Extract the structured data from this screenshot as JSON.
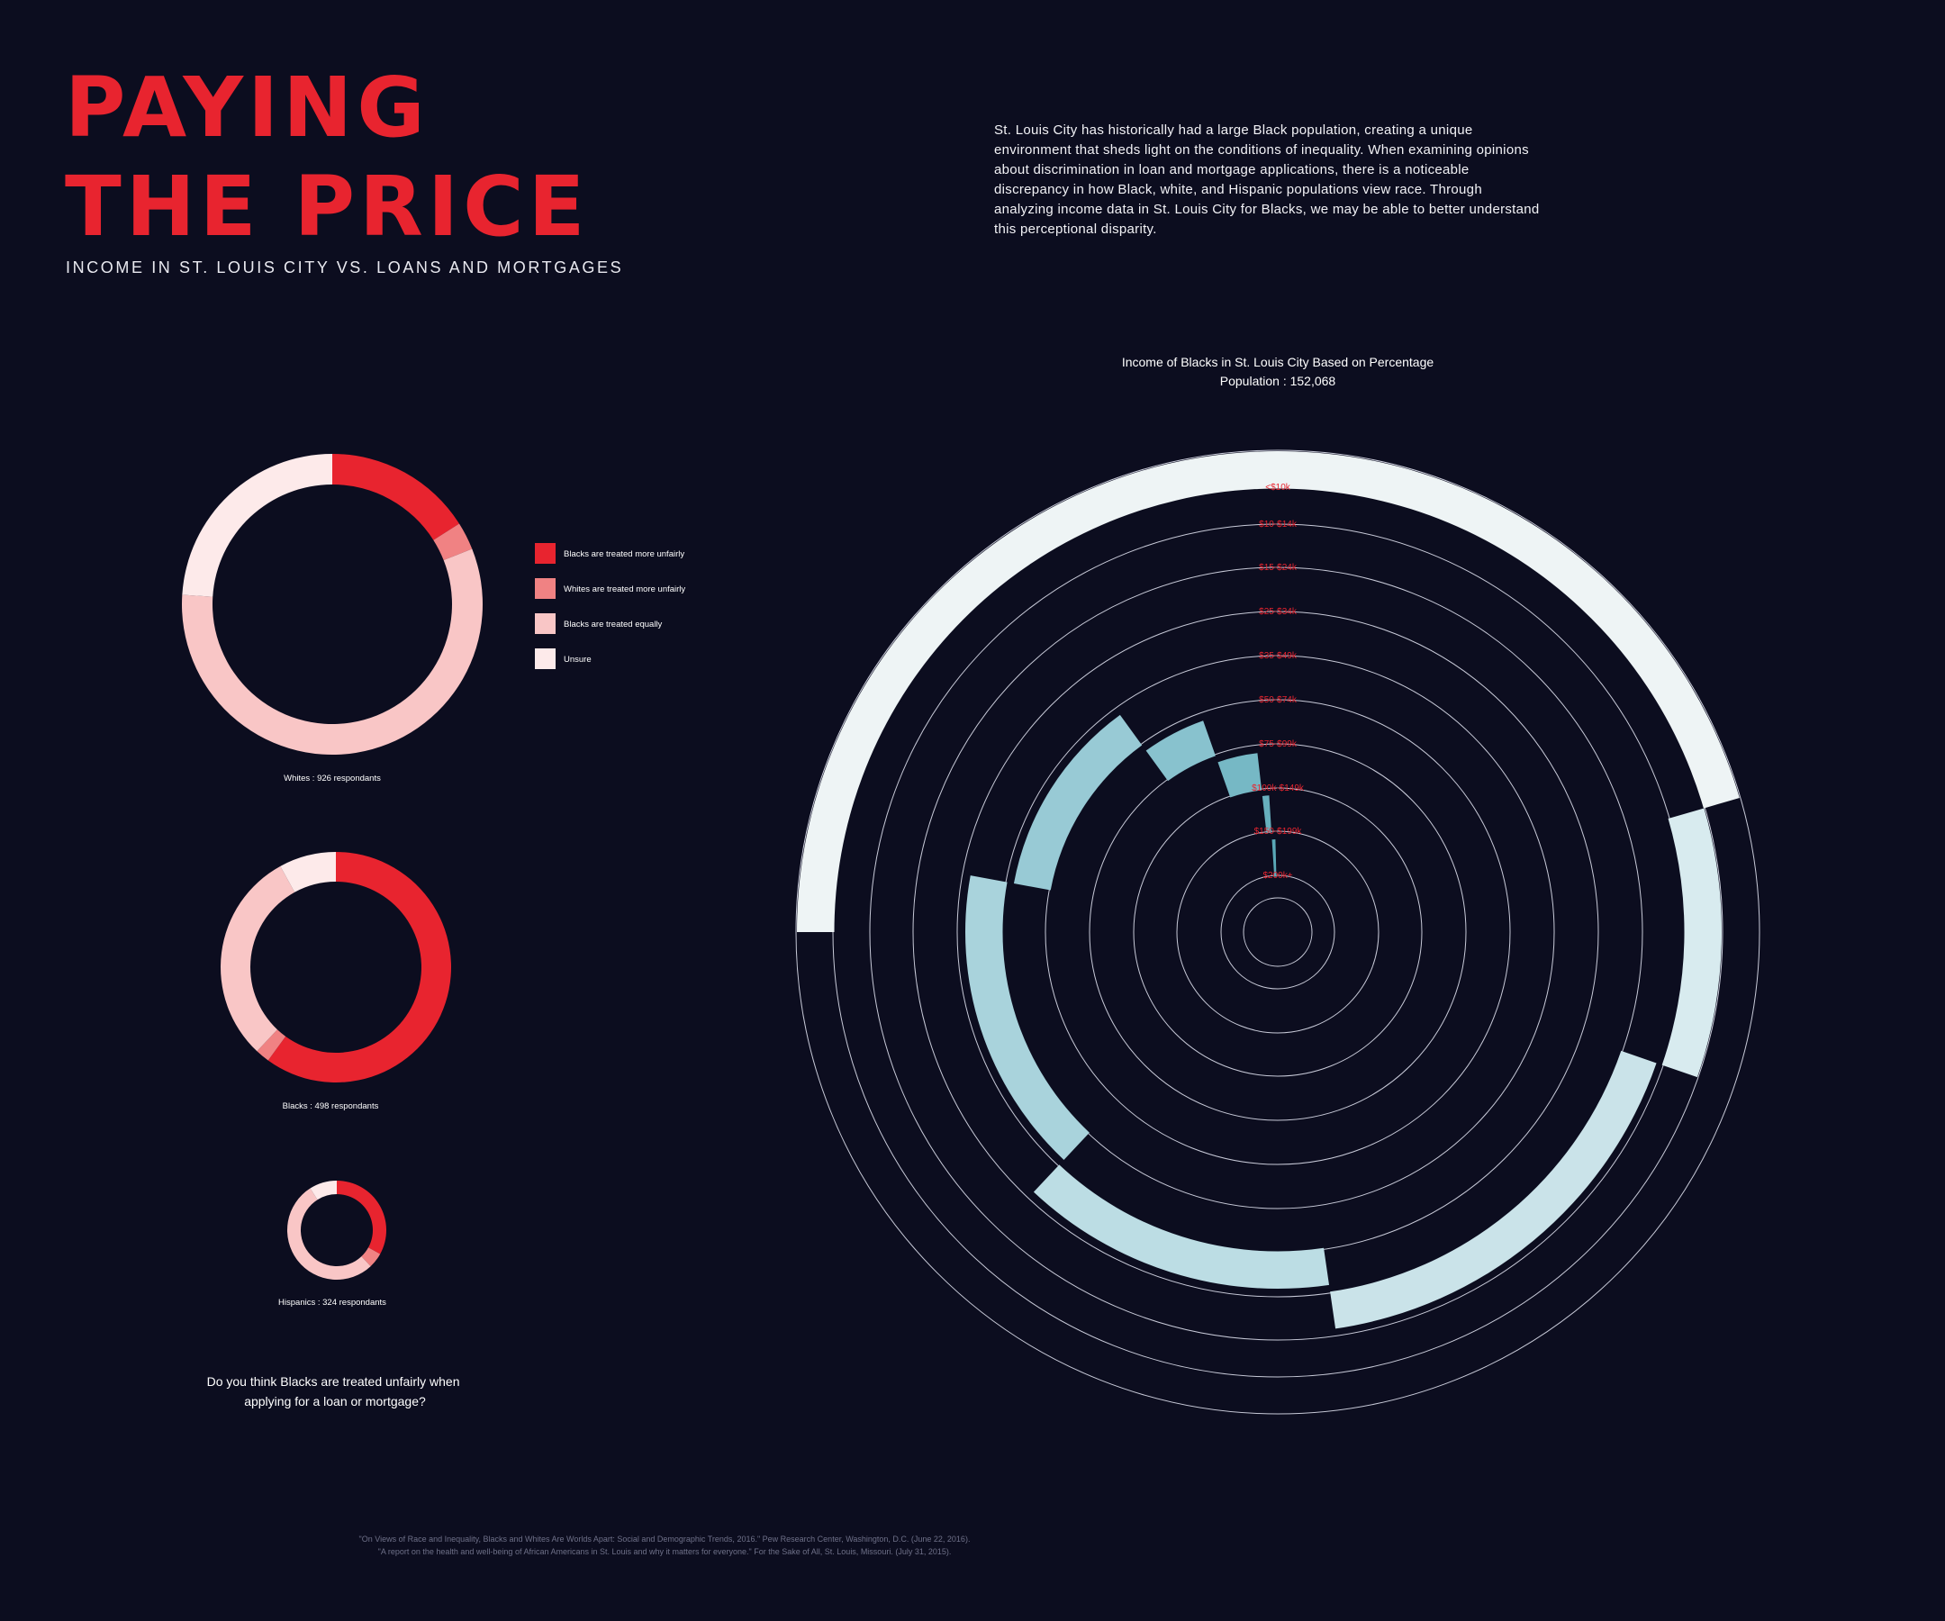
{
  "header": {
    "title_line1": "PAYING",
    "title_line2": "THE PRICE",
    "subtitle": "INCOME IN ST. LOUIS CITY VS. LOANS AND MORTGAGES"
  },
  "intro": "St. Louis City has historically had a large Black population, creating a unique environment that sheds light on the conditions of inequality. When examining opinions about discrimination in loan and mortgage applications, there is a noticeable discrepancy in how Black, white, and Hispanic populations view race. Through analyzing income data in St. Louis City for Blacks, we may be able to better understand this perceptional disparity.",
  "survey": {
    "question": "Do you think Blacks are treated unfairly when applying for a loan or mortgage?",
    "legend": [
      {
        "label": "Blacks are treated more unfairly",
        "color": "#e8242f"
      },
      {
        "label": "Whites are treated more unfairly",
        "color": "#f08283"
      },
      {
        "label": "Blacks are treated equally",
        "color": "#f9c6c6"
      },
      {
        "label": "Unsure",
        "color": "#fdeaea"
      }
    ]
  },
  "chart_data": [
    {
      "type": "pie",
      "variant": "donut",
      "title": "Whites : 926 respondants",
      "categories": [
        "Blacks are treated more unfairly",
        "Whites are treated more unfairly",
        "Blacks are treated equally",
        "Unsure"
      ],
      "values": [
        16,
        3,
        57,
        24
      ],
      "colors": [
        "#e8242f",
        "#f08283",
        "#f9c6c6",
        "#fdeaea"
      ]
    },
    {
      "type": "pie",
      "variant": "donut",
      "title": "Blacks : 498 respondants",
      "categories": [
        "Blacks are treated more unfairly",
        "Whites are treated more unfairly",
        "Blacks are treated equally",
        "Unsure"
      ],
      "values": [
        60,
        2,
        30,
        8
      ],
      "colors": [
        "#e8242f",
        "#f08283",
        "#f9c6c6",
        "#fdeaea"
      ]
    },
    {
      "type": "pie",
      "variant": "donut",
      "title": "Hispanics : 324 respondants",
      "categories": [
        "Blacks are treated more unfairly",
        "Whites are treated more unfairly",
        "Blacks are treated equally",
        "Unsure"
      ],
      "values": [
        33,
        5,
        53,
        9
      ],
      "colors": [
        "#e8242f",
        "#f08283",
        "#f9c6c6",
        "#fdeaea"
      ]
    },
    {
      "type": "bar",
      "variant": "radial",
      "title": "Income of Blacks in St. Louis City Based on Percentage",
      "subtitle": "Population  :  152,068",
      "categories": [
        "<$10k",
        "$10-$14k",
        "$15-$24k",
        "$25-$34k",
        "$35-$49k",
        "$50-$74k",
        "$75-$99k",
        "$100k-$149k",
        "$150-$199k",
        "$200k+"
      ],
      "values": [
        20.5,
        9.8,
        17.4,
        14.3,
        15.9,
        12.1,
        4.6,
        3.6,
        0.8,
        0.6
      ],
      "start_angles": [
        0,
        20.5,
        30.3,
        47.7,
        62.0,
        77.9,
        90.0,
        94.6,
        98.2,
        99.0
      ],
      "colors": [
        "#eef4f5",
        "#d8ebef",
        "#cae3e9",
        "#bcdde4",
        "#a9d3dc",
        "#98cad5",
        "#88c2ce",
        "#76b8c5",
        "#67afbd",
        "#5aa8b7"
      ],
      "grid": true
    }
  ],
  "sources": [
    "\"On Views of Race and Inequality, Blacks and Whites Are Worlds Apart: Social and Demographic Trends, 2016.\" Pew Research Center, Washington, D.C. (June 22, 2016).",
    "\"A report on the health and well-being of African Americans in St. Louis and why it matters for everyone.\" For the Sake of All, St. Louis, Missouri. (July 31, 2015)."
  ]
}
